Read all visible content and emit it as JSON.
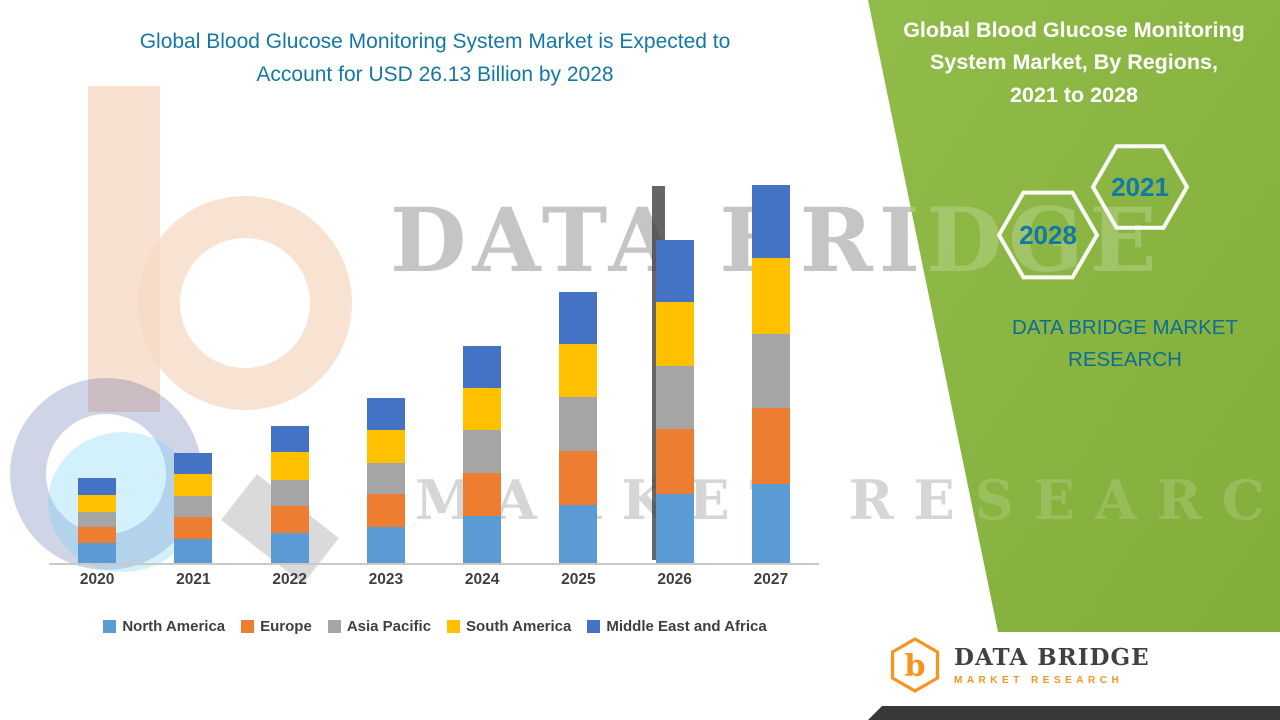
{
  "left_title": {
    "lines": [
      "Global Blood Glucose Monitoring System Market is Expected to",
      "Account for USD 26.13 Billion by 2028"
    ]
  },
  "right_panel": {
    "title_lines": [
      "Global Blood Glucose Monitoring",
      "System Market, By Regions,",
      "2021 to 2028"
    ],
    "badges": [
      {
        "year": "2028"
      },
      {
        "year": "2021"
      }
    ],
    "brand_lines": [
      "DATA BRIDGE MARKET",
      "RESEARCH"
    ]
  },
  "watermark": {
    "line1": "DATA BRIDGE",
    "line2": "MARKET RESEARCH"
  },
  "footer_logo": {
    "name": "DATA BRIDGE",
    "tagline": "MARKET RESEARCH",
    "letter": "b"
  },
  "colors": {
    "green_panel": "#8FBA47",
    "teal_text": "#1478A6",
    "brand_orange": "#F7941D",
    "bottom_strip": "#383838",
    "axis_label": "#3F3F3F"
  },
  "chart_data": {
    "type": "bar",
    "stacked": true,
    "unit": "USD Billion (estimated from bar heights)",
    "title": "Global Blood Glucose Monitoring System Market is Expected to Account for USD 26.13 Billion by 2028",
    "xlabel": "",
    "ylabel": "",
    "y_axis_visible": false,
    "grid": false,
    "legend_position": "bottom",
    "categories": [
      "2020",
      "2021",
      "2022",
      "2023",
      "2024",
      "2025",
      "2026",
      "2027"
    ],
    "series": [
      {
        "name": "North America",
        "color": "#5B9BD5",
        "values": [
          1.25,
          1.55,
          1.9,
          2.3,
          3.0,
          3.7,
          4.4,
          5.0
        ]
      },
      {
        "name": "Europe",
        "color": "#ED7D31",
        "values": [
          1.05,
          1.4,
          1.75,
          2.1,
          2.75,
          3.45,
          4.1,
          4.85
        ]
      },
      {
        "name": "Asia Pacific",
        "color": "#A5A5A5",
        "values": [
          0.95,
          1.3,
          1.65,
          2.0,
          2.7,
          3.4,
          4.05,
          4.75
        ]
      },
      {
        "name": "South America",
        "color": "#FFC000",
        "values": [
          1.1,
          1.4,
          1.75,
          2.1,
          2.7,
          3.4,
          4.05,
          4.8
        ]
      },
      {
        "name": "Middle East and Africa",
        "color": "#4472C4",
        "values": [
          1.05,
          1.35,
          1.7,
          2.0,
          2.65,
          3.3,
          3.95,
          4.65
        ]
      }
    ]
  }
}
